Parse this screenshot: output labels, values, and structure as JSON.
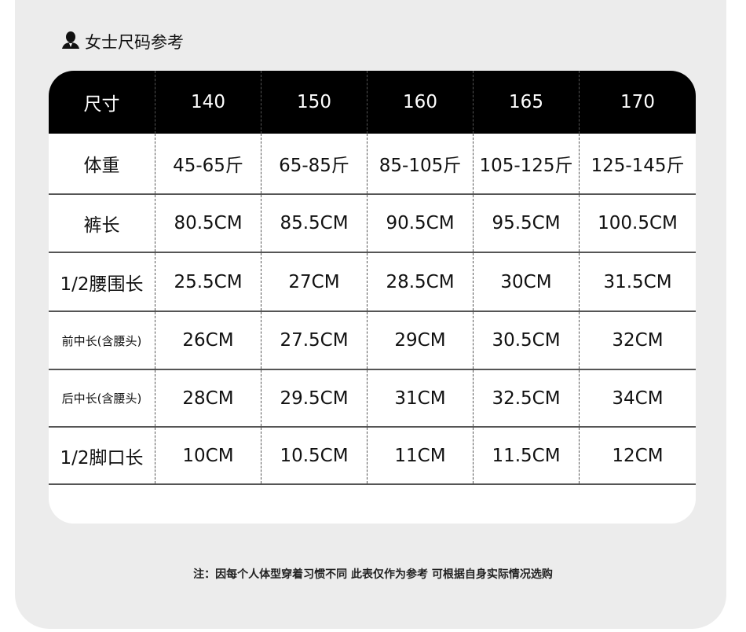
{
  "title": "女士尺码参考",
  "icon": "person-silhouette-icon",
  "table": {
    "headers": [
      "尺寸",
      "140",
      "150",
      "160",
      "165",
      "170"
    ],
    "rows": [
      {
        "label": "体重",
        "values": [
          "45-65斤",
          "65-85斤",
          "85-105斤",
          "105-125斤",
          "125-145斤"
        ]
      },
      {
        "label": "裤长",
        "values": [
          "80.5CM",
          "85.5CM",
          "90.5CM",
          "95.5CM",
          "100.5CM"
        ]
      },
      {
        "label": "1/2腰围长",
        "values": [
          "25.5CM",
          "27CM",
          "28.5CM",
          "30CM",
          "31.5CM"
        ]
      },
      {
        "label": "前中长(含腰头)",
        "values": [
          "26CM",
          "27.5CM",
          "29CM",
          "30.5CM",
          "32CM"
        ]
      },
      {
        "label": "后中长(含腰头)",
        "values": [
          "28CM",
          "29.5CM",
          "31CM",
          "32.5CM",
          "34CM"
        ]
      },
      {
        "label": "1/2脚口长",
        "values": [
          "10CM",
          "10.5CM",
          "11CM",
          "11.5CM",
          "12CM"
        ]
      }
    ]
  },
  "note": "注：因每个人体型穿着习惯不同 此表仅作为参考 可根据自身实际情况选购"
}
